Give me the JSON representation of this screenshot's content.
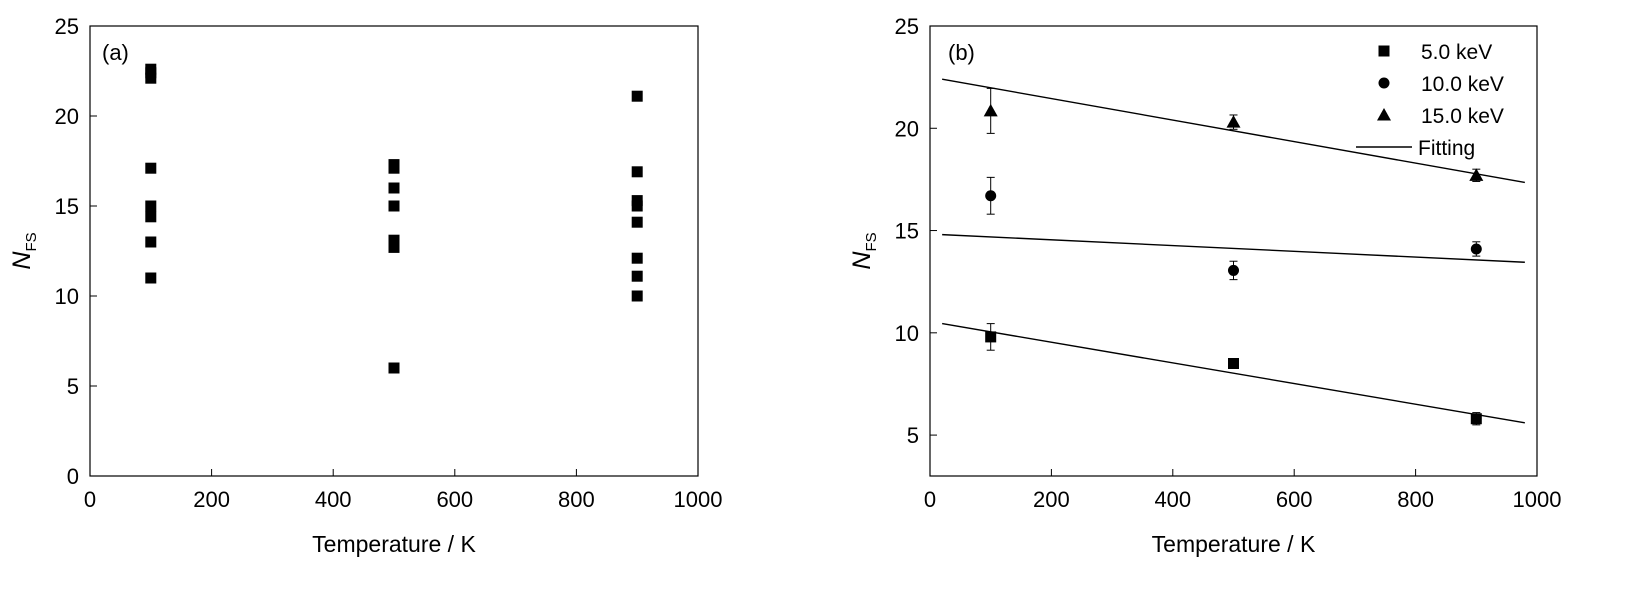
{
  "chart_data": [
    {
      "type": "scatter",
      "panel_label": "(a)",
      "xlabel": "Temperature / K",
      "ylabel": "N",
      "ylabel_sub": "FS",
      "xlim": [
        0,
        1000
      ],
      "ylim": [
        0,
        25
      ],
      "xticks": [
        0,
        200,
        400,
        600,
        800,
        1000
      ],
      "yticks": [
        0,
        5,
        10,
        15,
        20,
        25
      ],
      "grid": false,
      "series": [
        {
          "marker": "square",
          "points": [
            [
              100,
              22.6
            ],
            [
              100,
              22.4
            ],
            [
              100,
              22.1
            ],
            [
              100,
              17.1
            ],
            [
              100,
              15.0
            ],
            [
              100,
              14.4
            ],
            [
              100,
              13.0
            ],
            [
              100,
              11.0
            ],
            [
              500,
              17.3
            ],
            [
              500,
              17.1
            ],
            [
              500,
              16.0
            ],
            [
              500,
              15.0
            ],
            [
              500,
              13.1
            ],
            [
              500,
              12.9
            ],
            [
              500,
              12.7
            ],
            [
              500,
              6.0
            ],
            [
              900,
              21.1
            ],
            [
              900,
              16.9
            ],
            [
              900,
              15.3
            ],
            [
              900,
              15.0
            ],
            [
              900,
              14.1
            ],
            [
              900,
              12.1
            ],
            [
              900,
              11.1
            ],
            [
              900,
              10.0
            ]
          ]
        }
      ]
    },
    {
      "type": "scatter",
      "panel_label": "(b)",
      "xlabel": "Temperature / K",
      "ylabel": "N",
      "ylabel_sub": "FS",
      "xlim": [
        0,
        1000
      ],
      "ylim": [
        3,
        25
      ],
      "xticks": [
        0,
        200,
        400,
        600,
        800,
        1000
      ],
      "yticks": [
        5,
        10,
        15,
        20,
        25
      ],
      "grid": false,
      "legend_position": "top-right",
      "series": [
        {
          "name": "5.0 keV",
          "marker": "square",
          "x": [
            100,
            500,
            900
          ],
          "y": [
            9.8,
            8.5,
            5.8
          ],
          "err": [
            0.65,
            0.15,
            0.3
          ]
        },
        {
          "name": "10.0 keV",
          "marker": "circle",
          "x": [
            100,
            500,
            900
          ],
          "y": [
            16.7,
            13.05,
            14.1
          ],
          "err": [
            0.9,
            0.45,
            0.35
          ]
        },
        {
          "name": "15.0 keV",
          "marker": "triangle",
          "x": [
            100,
            500,
            900
          ],
          "y": [
            20.85,
            20.3,
            17.7
          ],
          "err": [
            1.1,
            0.35,
            0.3
          ]
        }
      ],
      "fit_label": "Fitting",
      "fits": [
        {
          "x": [
            20,
            980
          ],
          "y": [
            10.45,
            5.6
          ]
        },
        {
          "x": [
            20,
            980
          ],
          "y": [
            14.8,
            13.45
          ]
        },
        {
          "x": [
            20,
            980
          ],
          "y": [
            22.4,
            17.35
          ]
        }
      ]
    }
  ]
}
